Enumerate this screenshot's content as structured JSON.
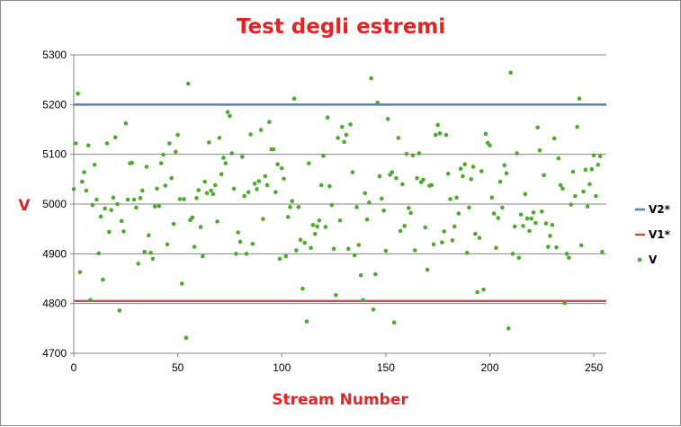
{
  "chart_data": {
    "type": "scatter",
    "title": "Test degli estremi",
    "xlabel": "Stream Number",
    "ylabel": "V",
    "xlim": [
      0,
      256
    ],
    "ylim": [
      4700,
      5300
    ],
    "xticks": [
      0,
      50,
      100,
      150,
      200,
      250
    ],
    "yticks": [
      4700,
      4800,
      4900,
      5000,
      5100,
      5200,
      5300
    ],
    "gridlines": "horizontal",
    "legend_position": "right",
    "colors": {
      "V2*": "#4f81bd",
      "V1*": "#c0504d",
      "V": "#4bac2c",
      "grid": "#868686",
      "title": "#e32424"
    },
    "reference_lines": [
      {
        "name": "V2*",
        "value": 5200
      },
      {
        "name": "V1*",
        "value": 4805
      }
    ],
    "series": [
      {
        "name": "V",
        "points": [
          [
            0,
            5030
          ],
          [
            1,
            5122
          ],
          [
            2,
            5222
          ],
          [
            3,
            4863
          ],
          [
            4,
            5045
          ],
          [
            5,
            5064
          ],
          [
            6,
            5027
          ],
          [
            7,
            5118
          ],
          [
            8,
            4807
          ],
          [
            9,
            4998
          ],
          [
            10,
            5079
          ],
          [
            11,
            5009
          ],
          [
            12,
            4901
          ],
          [
            13,
            4975
          ],
          [
            14,
            4848
          ],
          [
            15,
            4991
          ],
          [
            16,
            5122
          ],
          [
            17,
            4944
          ],
          [
            18,
            4988
          ],
          [
            19,
            5013
          ],
          [
            20,
            5134
          ],
          [
            21,
            5000
          ],
          [
            22,
            4786
          ],
          [
            23,
            4966
          ],
          [
            24,
            4945
          ],
          [
            25,
            5162
          ],
          [
            26,
            5009
          ],
          [
            27,
            5082
          ],
          [
            28,
            5083
          ],
          [
            29,
            5009
          ],
          [
            30,
            4993
          ],
          [
            31,
            4880
          ],
          [
            32,
            5012
          ],
          [
            33,
            5027
          ],
          [
            34,
            4904
          ],
          [
            35,
            5075
          ],
          [
            36,
            4937
          ],
          [
            37,
            4902
          ],
          [
            38,
            4890
          ],
          [
            39,
            4995
          ],
          [
            40,
            5031
          ],
          [
            41,
            4996
          ],
          [
            42,
            5082
          ],
          [
            43,
            5099
          ],
          [
            44,
            5037
          ],
          [
            45,
            4919
          ],
          [
            46,
            5122
          ],
          [
            47,
            5052
          ],
          [
            48,
            4960
          ],
          [
            49,
            5105
          ],
          [
            50,
            5139
          ],
          [
            51,
            5010
          ],
          [
            52,
            4840
          ],
          [
            53,
            5010
          ],
          [
            54,
            4731
          ],
          [
            55,
            5242
          ],
          [
            56,
            4968
          ],
          [
            57,
            4973
          ],
          [
            58,
            4914
          ],
          [
            59,
            5012
          ],
          [
            60,
            5028
          ],
          [
            61,
            4954
          ],
          [
            62,
            4895
          ],
          [
            63,
            5045
          ],
          [
            64,
            5022
          ],
          [
            65,
            5124
          ],
          [
            66,
            5027
          ],
          [
            67,
            5020
          ],
          [
            68,
            5038
          ],
          [
            69,
            4965
          ],
          [
            70,
            5133
          ],
          [
            71,
            5060
          ],
          [
            72,
            5093
          ],
          [
            73,
            5082
          ],
          [
            74,
            5185
          ],
          [
            75,
            5177
          ],
          [
            76,
            5102
          ],
          [
            77,
            5031
          ],
          [
            78,
            4900
          ],
          [
            79,
            4943
          ],
          [
            80,
            4924
          ],
          [
            81,
            5095
          ],
          [
            82,
            5016
          ],
          [
            83,
            4900
          ],
          [
            84,
            5024
          ],
          [
            85,
            5140
          ],
          [
            86,
            4920
          ],
          [
            87,
            5041
          ],
          [
            88,
            5030
          ],
          [
            89,
            5046
          ],
          [
            90,
            5149
          ],
          [
            91,
            4970
          ],
          [
            92,
            5056
          ],
          [
            93,
            5038
          ],
          [
            94,
            5165
          ],
          [
            95,
            5110
          ],
          [
            96,
            5110
          ],
          [
            97,
            5024
          ],
          [
            98,
            5080
          ],
          [
            99,
            4890
          ],
          [
            100,
            5072
          ],
          [
            101,
            5051
          ],
          [
            102,
            4895
          ],
          [
            103,
            4974
          ],
          [
            104,
            4994
          ],
          [
            105,
            5006
          ],
          [
            106,
            5212
          ],
          [
            107,
            4907
          ],
          [
            108,
            4994
          ],
          [
            109,
            4928
          ],
          [
            110,
            4830
          ],
          [
            111,
            4922
          ],
          [
            112,
            4764
          ],
          [
            113,
            5082
          ],
          [
            114,
            4912
          ],
          [
            115,
            4958
          ],
          [
            116,
            4940
          ],
          [
            117,
            4955
          ],
          [
            118,
            4967
          ],
          [
            119,
            5038
          ],
          [
            120,
            5097
          ],
          [
            121,
            4954
          ],
          [
            122,
            5174
          ],
          [
            123,
            5036
          ],
          [
            124,
            4998
          ],
          [
            125,
            4910
          ],
          [
            126,
            4817
          ],
          [
            127,
            5133
          ],
          [
            128,
            4967
          ],
          [
            129,
            5155
          ],
          [
            130,
            5125
          ],
          [
            131,
            5139
          ],
          [
            132,
            4910
          ],
          [
            133,
            5160
          ],
          [
            134,
            5064
          ],
          [
            135,
            4897
          ],
          [
            136,
            4994
          ],
          [
            137,
            4918
          ],
          [
            138,
            4857
          ],
          [
            139,
            4807
          ],
          [
            140,
            5022
          ],
          [
            141,
            4969
          ],
          [
            142,
            5003
          ],
          [
            143,
            5253
          ],
          [
            144,
            4788
          ],
          [
            145,
            4859
          ],
          [
            146,
            5204
          ],
          [
            147,
            5056
          ],
          [
            148,
            5011
          ],
          [
            149,
            4987
          ],
          [
            150,
            4906
          ],
          [
            151,
            5171
          ],
          [
            152,
            5059
          ],
          [
            153,
            5064
          ],
          [
            154,
            4762
          ],
          [
            155,
            5052
          ],
          [
            156,
            5133
          ],
          [
            157,
            4946
          ],
          [
            158,
            5040
          ],
          [
            159,
            4956
          ],
          [
            160,
            5101
          ],
          [
            161,
            4992
          ],
          [
            162,
            4982
          ],
          [
            163,
            5098
          ],
          [
            164,
            4907
          ],
          [
            165,
            5052
          ],
          [
            166,
            5102
          ],
          [
            167,
            5044
          ],
          [
            168,
            5049
          ],
          [
            169,
            4953
          ],
          [
            170,
            4868
          ],
          [
            171,
            5037
          ],
          [
            172,
            5038
          ],
          [
            173,
            4919
          ],
          [
            174,
            5139
          ],
          [
            175,
            5159
          ],
          [
            176,
            5142
          ],
          [
            177,
            4923
          ],
          [
            178,
            4945
          ],
          [
            179,
            5139
          ],
          [
            180,
            5061
          ],
          [
            181,
            5010
          ],
          [
            182,
            4927
          ],
          [
            183,
            4955
          ],
          [
            184,
            5013
          ],
          [
            185,
            4981
          ],
          [
            186,
            5071
          ],
          [
            187,
            5056
          ],
          [
            188,
            5080
          ],
          [
            189,
            4902
          ],
          [
            190,
            4993
          ],
          [
            191,
            5050
          ],
          [
            192,
            5075
          ],
          [
            193,
            4940
          ],
          [
            194,
            4823
          ],
          [
            195,
            4932
          ],
          [
            196,
            5066
          ],
          [
            197,
            4828
          ],
          [
            198,
            5141
          ],
          [
            199,
            5123
          ],
          [
            200,
            5118
          ],
          [
            201,
            5013
          ],
          [
            202,
            4981
          ],
          [
            203,
            4912
          ],
          [
            204,
            4972
          ],
          [
            205,
            5045
          ],
          [
            206,
            4993
          ],
          [
            207,
            5078
          ],
          [
            208,
            5062
          ],
          [
            209,
            4750
          ],
          [
            210,
            5264
          ],
          [
            211,
            4900
          ],
          [
            212,
            4955
          ],
          [
            213,
            5102
          ],
          [
            214,
            4892
          ],
          [
            215,
            4979
          ],
          [
            216,
            4956
          ],
          [
            217,
            5020
          ],
          [
            218,
            4971
          ],
          [
            219,
            4946
          ],
          [
            220,
            4971
          ],
          [
            221,
            4983
          ],
          [
            222,
            4962
          ],
          [
            223,
            5154
          ],
          [
            224,
            5108
          ],
          [
            225,
            4985
          ],
          [
            226,
            5058
          ],
          [
            227,
            4961
          ],
          [
            228,
            4914
          ],
          [
            229,
            4936
          ],
          [
            230,
            4958
          ],
          [
            231,
            5132
          ],
          [
            232,
            4913
          ],
          [
            233,
            5092
          ],
          [
            234,
            5038
          ],
          [
            235,
            5031
          ],
          [
            236,
            4801
          ],
          [
            237,
            4900
          ],
          [
            238,
            4892
          ],
          [
            239,
            4999
          ],
          [
            240,
            5065
          ],
          [
            241,
            5016
          ],
          [
            242,
            5155
          ],
          [
            243,
            5212
          ],
          [
            244,
            4917
          ],
          [
            245,
            5025
          ],
          [
            246,
            5069
          ],
          [
            247,
            4995
          ],
          [
            248,
            5040
          ],
          [
            249,
            5070
          ],
          [
            250,
            5098
          ],
          [
            251,
            5016
          ],
          [
            252,
            5079
          ],
          [
            253,
            5096
          ],
          [
            254,
            4904
          ]
        ]
      }
    ]
  }
}
